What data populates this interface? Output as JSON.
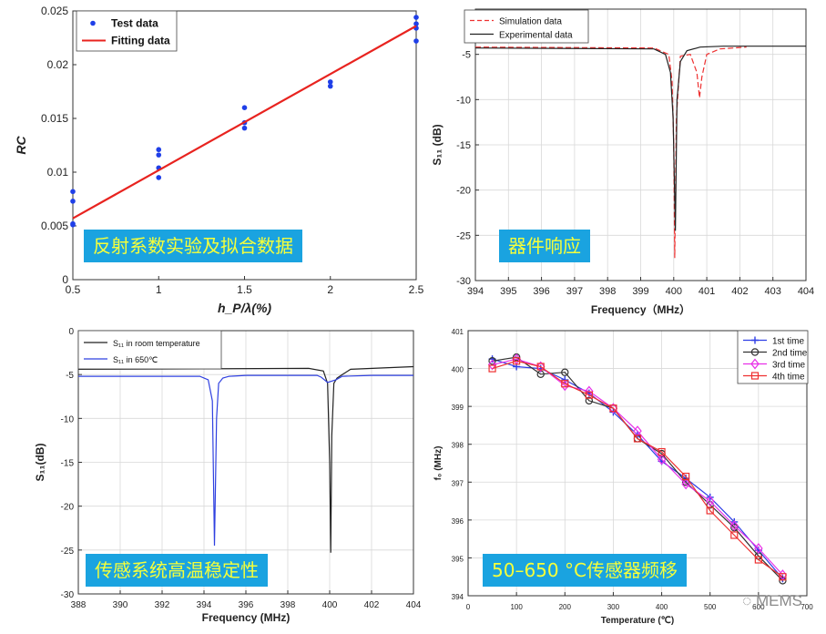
{
  "chart_data": [
    {
      "type": "scatter",
      "title": "",
      "xlabel": "h_P/λ(%)",
      "ylabel": "RC",
      "xlim": [
        0.5,
        2.5
      ],
      "ylim": [
        0,
        0.025
      ],
      "xticks": [
        "0.5",
        "1",
        "1.5",
        "2",
        "2.5"
      ],
      "yticks": [
        "0",
        "0.005",
        "0.01",
        "0.015",
        "0.02",
        "0.025"
      ],
      "legend": "top-left",
      "series": [
        {
          "name": "Test data",
          "kind": "scatter",
          "color": "#1f3fe8",
          "x": [
            0.5,
            0.5,
            0.5,
            0.5,
            1,
            1,
            1,
            1,
            1.5,
            1.5,
            1.5,
            2,
            2,
            2.5,
            2.5,
            2.5,
            2.5
          ],
          "y": [
            0.0082,
            0.0073,
            0.0052,
            0.0051,
            0.0121,
            0.0116,
            0.0104,
            0.0095,
            0.016,
            0.0146,
            0.0141,
            0.0184,
            0.018,
            0.0244,
            0.0238,
            0.0234,
            0.0222
          ]
        },
        {
          "name": "Fitting data",
          "kind": "line",
          "color": "#e8231f",
          "x": [
            0.5,
            2.5
          ],
          "y": [
            0.0057,
            0.0236
          ]
        }
      ],
      "banner": "反射系数实验及拟合数据"
    },
    {
      "type": "line",
      "title": "",
      "xlabel": "Frequency（MHz）",
      "ylabel": "S₁₁ (dB)",
      "xlim": [
        394,
        404
      ],
      "ylim": [
        -30,
        0
      ],
      "xticks": [
        "394",
        "395",
        "396",
        "397",
        "398",
        "399",
        "400",
        "401",
        "402",
        "403",
        "404"
      ],
      "yticks": [
        "-30",
        "-25",
        "-20",
        "-15",
        "-10",
        "-5"
      ],
      "legend": "top-left",
      "series": [
        {
          "name": "Simulation data",
          "color": "#ee3030",
          "dash": true,
          "x": [
            394,
            399.4,
            399.85,
            399.95,
            400.0,
            400.03,
            400.08,
            400.2,
            400.5,
            400.7,
            400.78,
            400.85,
            401.0,
            401.4,
            402.2
          ],
          "y": [
            -4.2,
            -4.3,
            -5.0,
            -8.0,
            -15.0,
            -27.5,
            -12.0,
            -5.2,
            -5.0,
            -7.0,
            -9.8,
            -7.5,
            -5.0,
            -4.4,
            -4.2
          ]
        },
        {
          "name": "Experimental data",
          "color": "#222222",
          "dash": false,
          "x": [
            394,
            399.4,
            399.75,
            399.9,
            399.98,
            400.05,
            400.1,
            400.2,
            400.4,
            400.8,
            401.5,
            404
          ],
          "y": [
            -4.3,
            -4.4,
            -5.0,
            -7.0,
            -12.0,
            -24.5,
            -10.0,
            -5.8,
            -4.6,
            -4.2,
            -4.1,
            -4.1
          ]
        }
      ],
      "banner": "器件响应"
    },
    {
      "type": "line",
      "title": "",
      "xlabel": "Frequency (MHz)",
      "ylabel": "S₁₁(dB)",
      "xlim": [
        388,
        404
      ],
      "ylim": [
        -30,
        0
      ],
      "xticks": [
        "388",
        "390",
        "392",
        "394",
        "396",
        "398",
        "400",
        "402",
        "404"
      ],
      "yticks": [
        "-30",
        "-25",
        "-20",
        "-15",
        "-10",
        "-5",
        "0"
      ],
      "legend": "top-left",
      "series": [
        {
          "name": "S₁₁ in room temperature",
          "color": "#222222",
          "x": [
            388,
            399,
            399.7,
            399.9,
            400.0,
            400.05,
            400.1,
            400.2,
            400.35,
            400.6,
            401,
            404
          ],
          "y": [
            -4.4,
            -4.3,
            -4.6,
            -6.0,
            -15.0,
            -25.3,
            -12.0,
            -6.0,
            -5.4,
            -5.0,
            -4.4,
            -4.1
          ]
        },
        {
          "name": "S₁₁ in 650℃",
          "color": "#2f40e0",
          "x": [
            388,
            393.8,
            394.2,
            394.4,
            394.5,
            394.6,
            394.7,
            394.9,
            395.2,
            396,
            398,
            399.4,
            399.6,
            399.9,
            400.3,
            400.6,
            402,
            404
          ],
          "y": [
            -5.2,
            -5.2,
            -5.6,
            -8.0,
            -24.5,
            -10.0,
            -6.0,
            -5.4,
            -5.2,
            -5.1,
            -5.1,
            -5.1,
            -5.3,
            -5.9,
            -5.6,
            -5.2,
            -5.1,
            -5.1
          ]
        }
      ],
      "banner": "传感系统高温稳定性"
    },
    {
      "type": "line",
      "title": "",
      "xlabel": "Temperature (℃)",
      "ylabel": "f₀ (MHz)",
      "xlim": [
        0,
        700
      ],
      "ylim": [
        394,
        401
      ],
      "xticks": [
        "0",
        "100",
        "200",
        "300",
        "400",
        "500",
        "600",
        "700"
      ],
      "yticks": [
        "394",
        "395",
        "396",
        "397",
        "398",
        "399",
        "400",
        "401"
      ],
      "legend": "top-right",
      "x": [
        50,
        100,
        150,
        200,
        250,
        300,
        350,
        400,
        450,
        500,
        550,
        600,
        650
      ],
      "series": [
        {
          "name": "1st time",
          "color": "#2f3fe6",
          "marker": "plus",
          "y": [
            400.25,
            400.05,
            400.0,
            399.7,
            399.35,
            398.85,
            398.25,
            397.55,
            397.1,
            396.6,
            395.95,
            395.2,
            394.45
          ]
        },
        {
          "name": "2nd time",
          "color": "#333333",
          "marker": "circle",
          "y": [
            400.2,
            400.3,
            399.85,
            399.9,
            399.15,
            398.95,
            398.15,
            397.75,
            397.0,
            396.4,
            395.8,
            395.05,
            394.4
          ]
        },
        {
          "name": "3rd time",
          "color": "#e830e8",
          "marker": "diamond",
          "y": [
            400.1,
            400.25,
            400.05,
            399.55,
            399.4,
            398.95,
            398.35,
            397.6,
            396.95,
            396.5,
            395.85,
            395.25,
            394.55
          ]
        },
        {
          "name": "4th time",
          "color": "#ee3030",
          "marker": "square",
          "y": [
            400.0,
            400.2,
            400.05,
            399.6,
            399.3,
            398.95,
            398.15,
            397.8,
            397.15,
            396.25,
            395.6,
            394.95,
            394.5
          ]
        }
      ],
      "banner": "50–650 °C传感器频移"
    }
  ],
  "watermark": "MEMS"
}
